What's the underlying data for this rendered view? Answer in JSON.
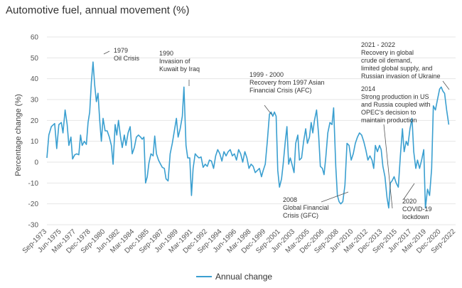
{
  "chart_data": {
    "type": "line",
    "title": "Automotive fuel, annual movement (%)",
    "xlabel": "",
    "ylabel": "Percentage change (%)",
    "ylim": [
      -30,
      60
    ],
    "yticks": [
      60,
      50,
      40,
      30,
      20,
      10,
      0,
      -10,
      -20,
      -30
    ],
    "xlim": [
      1973.67,
      2022.67
    ],
    "x_tick_labels": [
      {
        "label": "Sep-1973",
        "x": 1973.67
      },
      {
        "label": "Jun-1975",
        "x": 1975.42
      },
      {
        "label": "Mar-1977",
        "x": 1977.17
      },
      {
        "label": "Dec-1978",
        "x": 1978.92
      },
      {
        "label": "Sep-1980",
        "x": 1980.67
      },
      {
        "label": "Jun-1982",
        "x": 1982.42
      },
      {
        "label": "Mar-1984",
        "x": 1984.17
      },
      {
        "label": "Dec-1985",
        "x": 1985.92
      },
      {
        "label": "Sep-1987",
        "x": 1987.67
      },
      {
        "label": "Jun-1989",
        "x": 1989.42
      },
      {
        "label": "Mar-1991",
        "x": 1991.17
      },
      {
        "label": "Dec-1992",
        "x": 1992.92
      },
      {
        "label": "Sep-1994",
        "x": 1994.67
      },
      {
        "label": "Jun-1996",
        "x": 1996.42
      },
      {
        "label": "Mar-1998",
        "x": 1998.17
      },
      {
        "label": "Dec-1999",
        "x": 1999.92
      },
      {
        "label": "Sep-2001",
        "x": 2001.67
      },
      {
        "label": "Jun-2003",
        "x": 2003.42
      },
      {
        "label": "Mar-2005",
        "x": 2005.17
      },
      {
        "label": "Dec-2006",
        "x": 2006.92
      },
      {
        "label": "Sep-2008",
        "x": 2008.67
      },
      {
        "label": "Jun-2010",
        "x": 2010.42
      },
      {
        "label": "Mar-2012",
        "x": 2012.17
      },
      {
        "label": "Dec-2013",
        "x": 2013.92
      },
      {
        "label": "Sep-2015",
        "x": 2015.67
      },
      {
        "label": "Jun-2017",
        "x": 2017.42
      },
      {
        "label": "Mar-2019",
        "x": 2019.17
      },
      {
        "label": "Dec-2020",
        "x": 2020.92
      },
      {
        "label": "Sep-2022",
        "x": 2022.67
      }
    ],
    "grid": true,
    "legend_position": "bottom",
    "series": [
      {
        "name": "Annual change",
        "color": "#3a9fd0",
        "points": [
          [
            1973.67,
            2
          ],
          [
            1973.9,
            13
          ],
          [
            1974.2,
            17
          ],
          [
            1974.6,
            18.5
          ],
          [
            1974.85,
            6.5
          ],
          [
            1975.1,
            18
          ],
          [
            1975.4,
            19
          ],
          [
            1975.6,
            14
          ],
          [
            1975.85,
            25
          ],
          [
            1976.1,
            18
          ],
          [
            1976.3,
            8
          ],
          [
            1976.55,
            12
          ],
          [
            1976.75,
            1.5
          ],
          [
            1977.0,
            3.5
          ],
          [
            1977.25,
            4
          ],
          [
            1977.5,
            3.5
          ],
          [
            1977.7,
            13
          ],
          [
            1977.9,
            8
          ],
          [
            1978.15,
            10
          ],
          [
            1978.4,
            8.5
          ],
          [
            1978.6,
            19
          ],
          [
            1978.8,
            24
          ],
          [
            1979.0,
            38
          ],
          [
            1979.2,
            48
          ],
          [
            1979.4,
            37
          ],
          [
            1979.6,
            29
          ],
          [
            1979.8,
            33
          ],
          [
            1980.0,
            20
          ],
          [
            1980.2,
            10
          ],
          [
            1980.4,
            21
          ],
          [
            1980.65,
            15
          ],
          [
            1980.9,
            15
          ],
          [
            1981.15,
            12
          ],
          [
            1981.4,
            8
          ],
          [
            1981.6,
            -1
          ],
          [
            1981.85,
            18
          ],
          [
            1982.05,
            13
          ],
          [
            1982.25,
            20
          ],
          [
            1982.5,
            12
          ],
          [
            1982.7,
            7
          ],
          [
            1982.95,
            13
          ],
          [
            1983.15,
            8
          ],
          [
            1983.4,
            14
          ],
          [
            1983.65,
            17
          ],
          [
            1983.9,
            4
          ],
          [
            1984.15,
            7
          ],
          [
            1984.4,
            12
          ],
          [
            1984.65,
            13
          ],
          [
            1984.9,
            12
          ],
          [
            1985.1,
            11
          ],
          [
            1985.3,
            12
          ],
          [
            1985.5,
            -10
          ],
          [
            1985.7,
            -7
          ],
          [
            1985.9,
            -0.5
          ],
          [
            1986.15,
            4
          ],
          [
            1986.4,
            3
          ],
          [
            1986.6,
            12.5
          ],
          [
            1986.8,
            4
          ],
          [
            1987.05,
            1
          ],
          [
            1987.3,
            -1
          ],
          [
            1987.5,
            -2.5
          ],
          [
            1987.75,
            -3
          ],
          [
            1987.95,
            -8
          ],
          [
            1988.2,
            -9
          ],
          [
            1988.45,
            4
          ],
          [
            1988.7,
            9
          ],
          [
            1988.95,
            15
          ],
          [
            1989.2,
            21
          ],
          [
            1989.4,
            12
          ],
          [
            1989.65,
            16
          ],
          [
            1989.9,
            22
          ],
          [
            1990.1,
            36
          ],
          [
            1990.35,
            8
          ],
          [
            1990.55,
            2
          ],
          [
            1990.8,
            2
          ],
          [
            1991.0,
            -16
          ],
          [
            1991.2,
            -3
          ],
          [
            1991.45,
            4
          ],
          [
            1991.65,
            3
          ],
          [
            1991.9,
            2
          ],
          [
            1992.15,
            2.5
          ],
          [
            1992.4,
            -2.5
          ],
          [
            1992.65,
            -1
          ],
          [
            1992.9,
            -2
          ],
          [
            1993.15,
            1
          ],
          [
            1993.4,
            0.5
          ],
          [
            1993.65,
            -3
          ],
          [
            1993.9,
            3
          ],
          [
            1994.15,
            6
          ],
          [
            1994.4,
            4
          ],
          [
            1994.65,
            0.5
          ],
          [
            1994.9,
            5
          ],
          [
            1995.15,
            3
          ],
          [
            1995.4,
            5
          ],
          [
            1995.65,
            6
          ],
          [
            1995.9,
            3
          ],
          [
            1996.15,
            4
          ],
          [
            1996.4,
            1
          ],
          [
            1996.65,
            6
          ],
          [
            1996.9,
            4
          ],
          [
            1997.15,
            0
          ],
          [
            1997.4,
            5
          ],
          [
            1997.65,
            2
          ],
          [
            1997.9,
            -3
          ],
          [
            1998.15,
            -1
          ],
          [
            1998.4,
            -2
          ],
          [
            1998.65,
            -5
          ],
          [
            1998.9,
            -4
          ],
          [
            1999.15,
            -3
          ],
          [
            1999.4,
            -7
          ],
          [
            1999.6,
            -4
          ],
          [
            1999.85,
            -1
          ],
          [
            2000.1,
            10
          ],
          [
            2000.35,
            23
          ],
          [
            2000.55,
            24
          ],
          [
            2000.75,
            22
          ],
          [
            2000.95,
            24
          ],
          [
            2001.15,
            22
          ],
          [
            2001.35,
            -4
          ],
          [
            2001.55,
            -12
          ],
          [
            2001.8,
            -8
          ],
          [
            2002.0,
            -1
          ],
          [
            2002.25,
            10
          ],
          [
            2002.45,
            17
          ],
          [
            2002.65,
            -1
          ],
          [
            2002.85,
            2
          ],
          [
            2003.05,
            -1
          ],
          [
            2003.3,
            -5
          ],
          [
            2003.5,
            9
          ],
          [
            2003.75,
            13
          ],
          [
            2003.95,
            1
          ],
          [
            2004.2,
            2
          ],
          [
            2004.45,
            10
          ],
          [
            2004.7,
            16
          ],
          [
            2004.9,
            9
          ],
          [
            2005.15,
            12
          ],
          [
            2005.35,
            19
          ],
          [
            2005.55,
            14
          ],
          [
            2005.75,
            20
          ],
          [
            2006.0,
            25
          ],
          [
            2006.25,
            13
          ],
          [
            2006.45,
            -2
          ],
          [
            2006.7,
            -3
          ],
          [
            2006.9,
            -6
          ],
          [
            2007.1,
            2
          ],
          [
            2007.35,
            14
          ],
          [
            2007.6,
            19
          ],
          [
            2007.85,
            18
          ],
          [
            2008.05,
            26
          ],
          [
            2008.3,
            -2
          ],
          [
            2008.5,
            -16
          ],
          [
            2008.7,
            -19
          ],
          [
            2008.9,
            -20
          ],
          [
            2009.15,
            -19
          ],
          [
            2009.4,
            -11
          ],
          [
            2009.65,
            9
          ],
          [
            2009.9,
            8
          ],
          [
            2010.15,
            1
          ],
          [
            2010.4,
            4
          ],
          [
            2010.65,
            9
          ],
          [
            2010.9,
            12
          ],
          [
            2011.15,
            14
          ],
          [
            2011.4,
            13
          ],
          [
            2011.65,
            10
          ],
          [
            2011.9,
            6
          ],
          [
            2012.15,
            1
          ],
          [
            2012.4,
            3
          ],
          [
            2012.65,
            1
          ],
          [
            2012.85,
            -3
          ],
          [
            2013.05,
            8
          ],
          [
            2013.3,
            5
          ],
          [
            2013.55,
            8
          ],
          [
            2013.75,
            6
          ],
          [
            2013.95,
            -2
          ],
          [
            2014.2,
            -7
          ],
          [
            2014.45,
            -17
          ],
          [
            2014.65,
            -22
          ],
          [
            2014.85,
            -10
          ],
          [
            2015.05,
            -9
          ],
          [
            2015.3,
            -7
          ],
          [
            2015.55,
            -10
          ],
          [
            2015.8,
            -12
          ],
          [
            2016.05,
            3
          ],
          [
            2016.3,
            16
          ],
          [
            2016.5,
            5
          ],
          [
            2016.75,
            10
          ],
          [
            2016.95,
            8
          ],
          [
            2017.2,
            16
          ],
          [
            2017.45,
            21
          ],
          [
            2017.65,
            5
          ],
          [
            2017.9,
            -3
          ],
          [
            2018.1,
            1
          ],
          [
            2018.35,
            -3
          ],
          [
            2018.6,
            1
          ],
          [
            2018.85,
            6
          ],
          [
            2019.05,
            -22
          ],
          [
            2019.3,
            -13
          ],
          [
            2019.55,
            -16
          ],
          [
            2019.8,
            -3
          ],
          [
            2020.0,
            27
          ],
          [
            2020.25,
            25
          ],
          [
            2020.5,
            30
          ],
          [
            2020.75,
            35
          ],
          [
            2020.95,
            36
          ],
          [
            2021.15,
            34
          ],
          [
            2021.35,
            33
          ],
          [
            2021.6,
            25
          ],
          [
            2021.85,
            18
          ]
        ]
      }
    ],
    "annotations": [
      {
        "lines": [
          "1979",
          "Oil Crisis"
        ],
        "x": 1979.2,
        "y": 48
      },
      {
        "lines": [
          "1990",
          "Invasion of",
          "Kuwait by Iraq"
        ],
        "x": 1990.1,
        "y": 36
      },
      {
        "lines": [
          "1999 - 2000",
          "Recovery from 1997 Asian",
          "Financial Crisis (AFC)"
        ],
        "x": 2000.35,
        "y": 23
      },
      {
        "lines": [
          "2008",
          "Global Financial",
          "Crisis (GFC)"
        ],
        "x": 2008.9,
        "y": -20
      },
      {
        "lines": [
          "2014",
          "Strong production in US",
          "and Russia coupled with",
          "OPEC's decision to",
          "maintain production"
        ],
        "x": 2014.65,
        "y": -22
      },
      {
        "lines": [
          "2020",
          "COVID-19",
          "lockdown"
        ],
        "x": 2019.05,
        "y": -22
      },
      {
        "lines": [
          "2021 - 2022",
          "Recovery in global",
          "crude oil demand,",
          "limited global supply, and",
          "Russian invasion of Ukraine"
        ],
        "x": 2020.95,
        "y": 36
      }
    ]
  }
}
